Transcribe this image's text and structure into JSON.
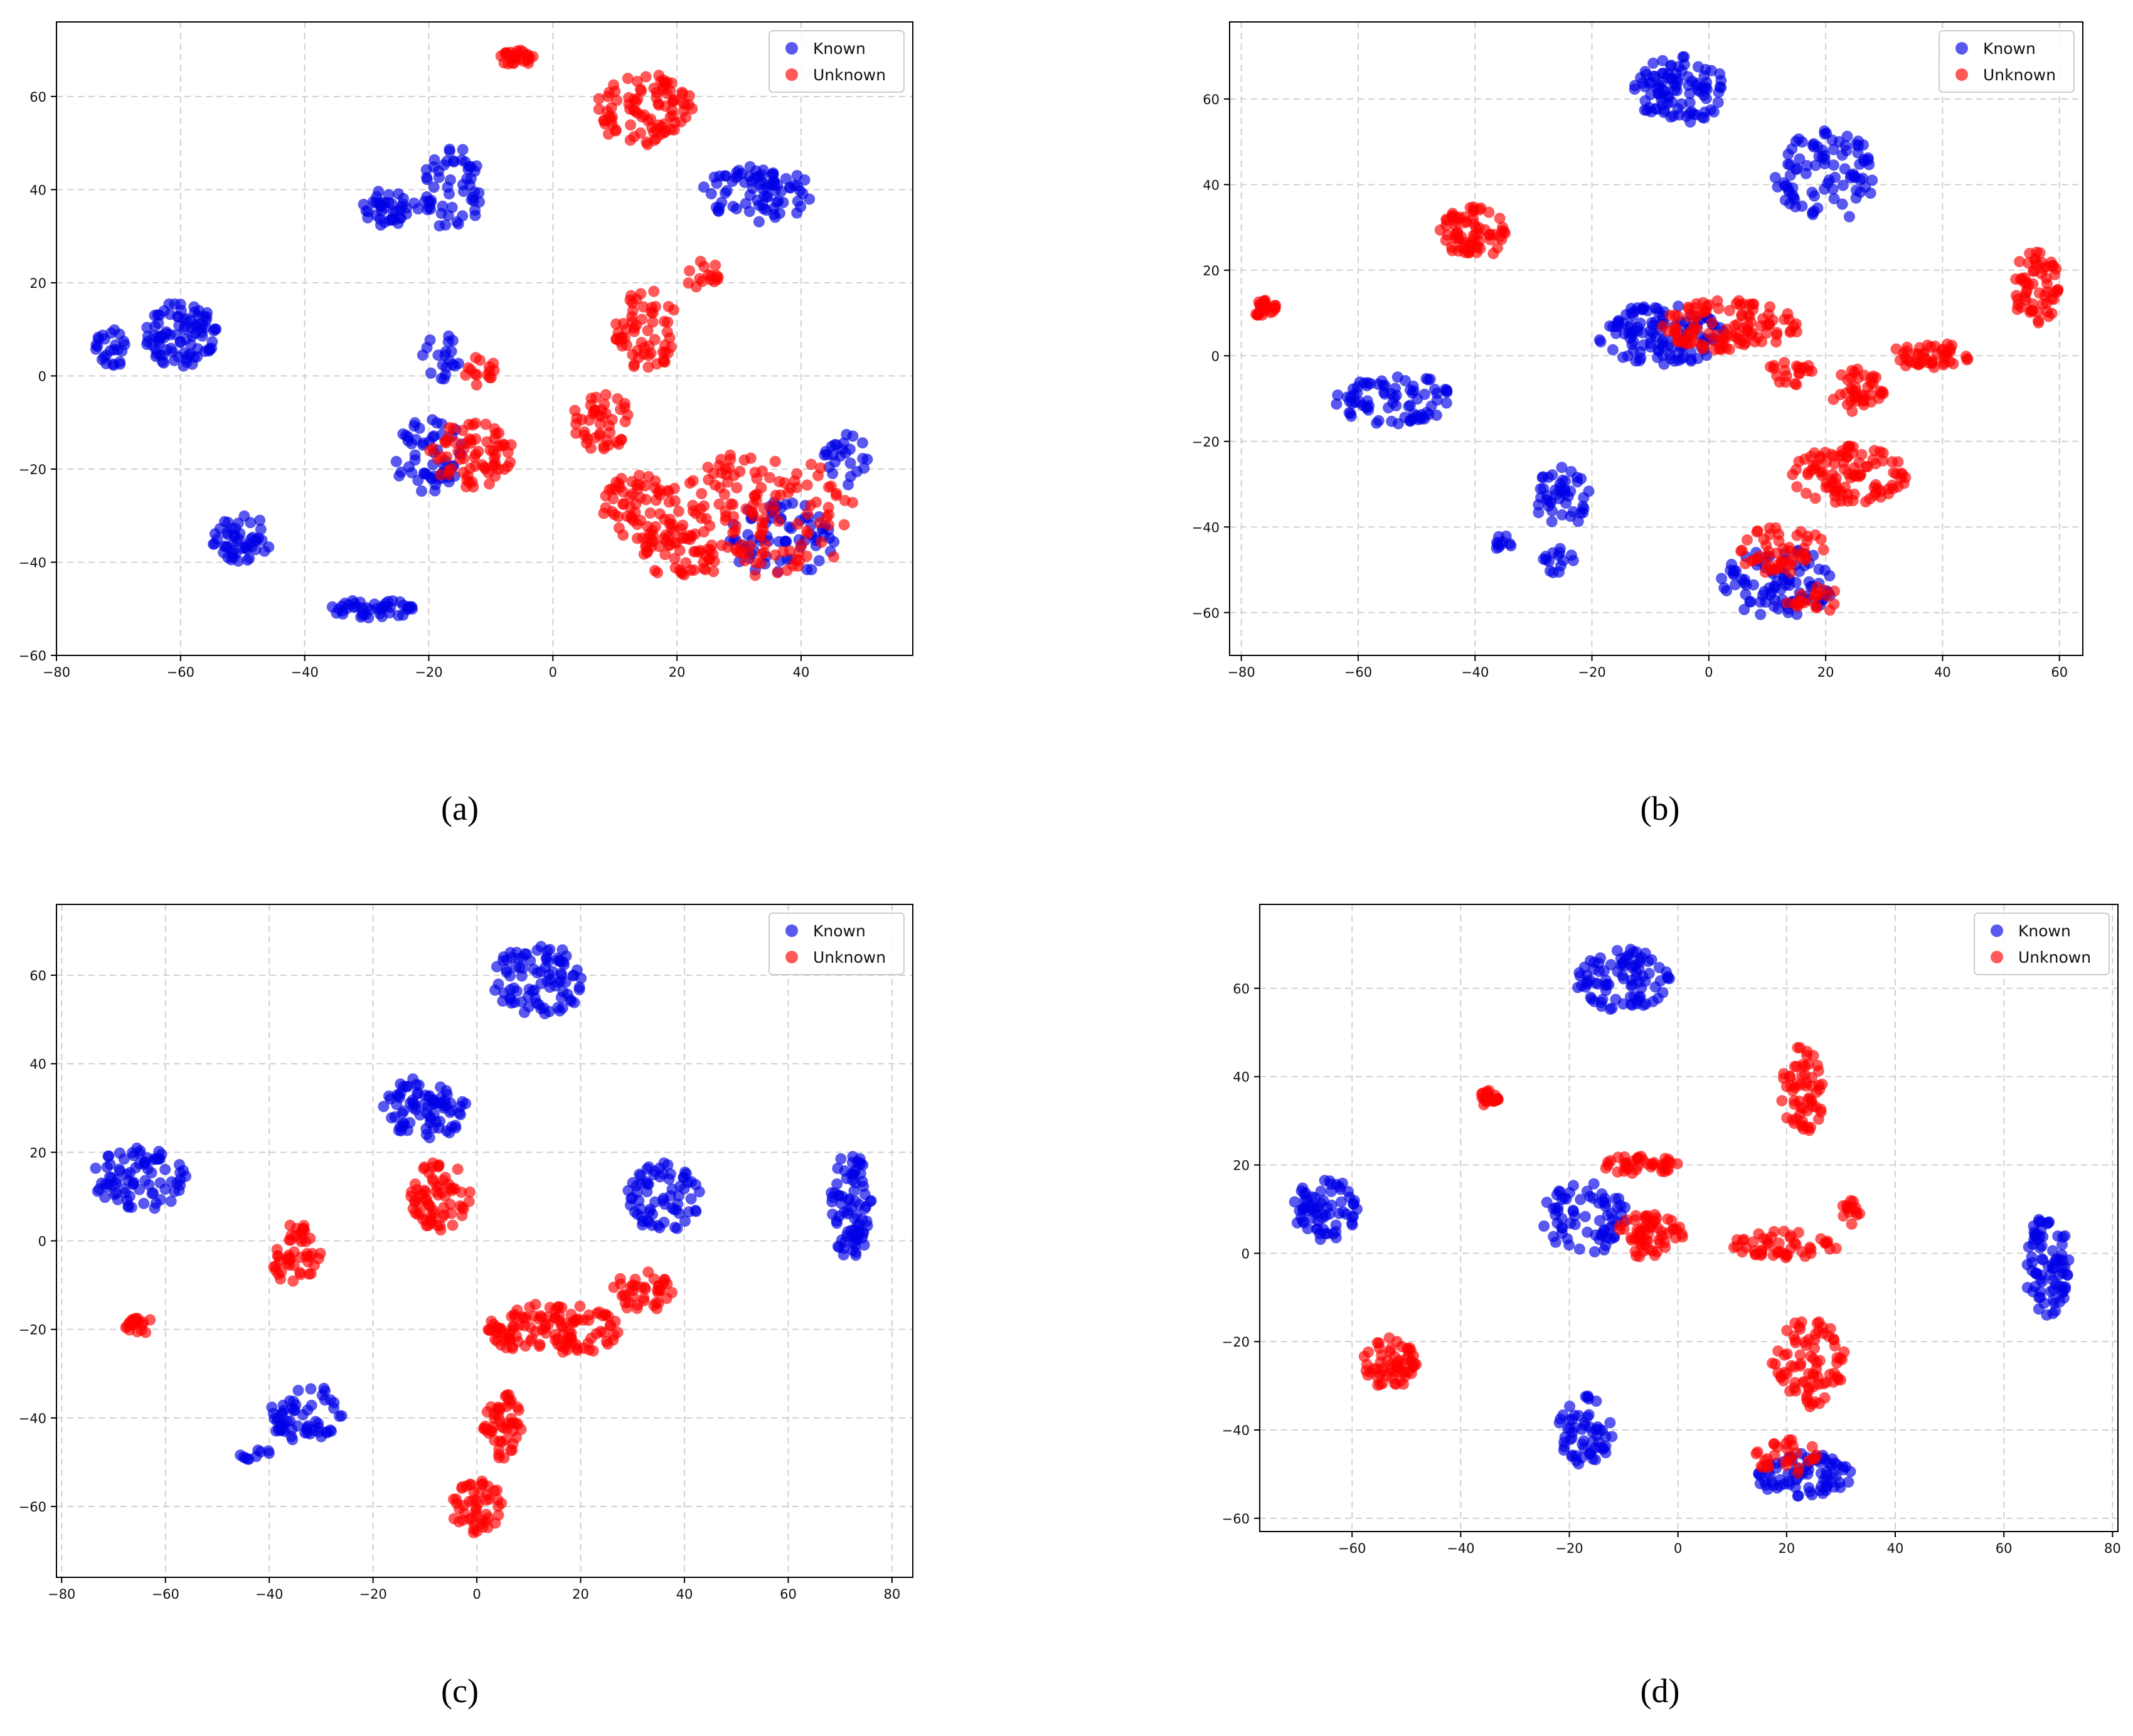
{
  "legend": {
    "known": "Known",
    "unknown": "Unknown"
  },
  "colors": {
    "known": "#0000e6",
    "unknown": "#ff0000",
    "grid": "#d0d0d0"
  },
  "chart_data": [
    {
      "type": "scatter",
      "caption": "(a)",
      "xlim": [
        -80,
        58
      ],
      "ylim": [
        -60,
        76
      ],
      "xticks": [
        -80,
        -60,
        -40,
        -20,
        0,
        20,
        40
      ],
      "yticks": [
        -60,
        -40,
        -20,
        0,
        20,
        40,
        60
      ],
      "grid": true,
      "legend_position": "top-right",
      "series": [
        {
          "name": "Known",
          "clusters": [
            {
              "cx": -60,
              "cy": 9,
              "rx": 6,
              "ry": 7,
              "n": 90
            },
            {
              "cx": -71,
              "cy": 6,
              "rx": 3,
              "ry": 4,
              "n": 25
            },
            {
              "cx": -50,
              "cy": -35,
              "rx": 5,
              "ry": 5,
              "n": 50
            },
            {
              "cx": -29,
              "cy": -50,
              "rx": 7,
              "ry": 2,
              "n": 45
            },
            {
              "cx": -26,
              "cy": 36,
              "rx": 5,
              "ry": 4,
              "n": 40
            },
            {
              "cx": -16,
              "cy": 40,
              "rx": 5,
              "ry": 9,
              "n": 55
            },
            {
              "cx": -20,
              "cy": -17,
              "rx": 6,
              "ry": 8,
              "n": 55
            },
            {
              "cx": -18,
              "cy": 4,
              "rx": 3,
              "ry": 5,
              "n": 20
            },
            {
              "cx": 33,
              "cy": 39,
              "rx": 9,
              "ry": 6,
              "n": 80
            },
            {
              "cx": 37,
              "cy": -35,
              "rx": 9,
              "ry": 8,
              "n": 70
            },
            {
              "cx": 47,
              "cy": -18,
              "rx": 4,
              "ry": 6,
              "n": 25
            }
          ]
        },
        {
          "name": "Unknown",
          "clusters": [
            {
              "cx": -6,
              "cy": 68,
              "rx": 3,
              "ry": 2,
              "n": 25
            },
            {
              "cx": 15,
              "cy": 57,
              "rx": 8,
              "ry": 8,
              "n": 90
            },
            {
              "cx": -13,
              "cy": -17,
              "rx": 7,
              "ry": 7,
              "n": 70
            },
            {
              "cx": -12,
              "cy": 1,
              "rx": 3,
              "ry": 3,
              "n": 15
            },
            {
              "cx": 15,
              "cy": 10,
              "rx": 5,
              "ry": 10,
              "n": 60
            },
            {
              "cx": 24,
              "cy": 22,
              "rx": 3,
              "ry": 3,
              "n": 15
            },
            {
              "cx": 8,
              "cy": -10,
              "rx": 5,
              "ry": 6,
              "n": 45
            },
            {
              "cx": 14,
              "cy": -28,
              "rx": 6,
              "ry": 7,
              "n": 55
            },
            {
              "cx": 20,
              "cy": -38,
              "rx": 6,
              "ry": 5,
              "n": 45
            },
            {
              "cx": 33,
              "cy": -30,
              "rx": 16,
              "ry": 14,
              "n": 150
            }
          ]
        }
      ]
    },
    {
      "type": "scatter",
      "caption": "(b)",
      "xlim": [
        -82,
        64
      ],
      "ylim": [
        -70,
        78
      ],
      "xticks": [
        -80,
        -60,
        -40,
        -20,
        0,
        20,
        40,
        60
      ],
      "yticks": [
        -60,
        -40,
        -20,
        0,
        20,
        40,
        60
      ],
      "grid": true,
      "legend_position": "top-right",
      "series": [
        {
          "name": "Known",
          "clusters": [
            {
              "cx": -5,
              "cy": 62,
              "rx": 8,
              "ry": 8,
              "n": 100
            },
            {
              "cx": 20,
              "cy": 42,
              "rx": 9,
              "ry": 11,
              "n": 90
            },
            {
              "cx": -54,
              "cy": -10,
              "rx": 10,
              "ry": 6,
              "n": 80
            },
            {
              "cx": -25,
              "cy": -33,
              "rx": 5,
              "ry": 7,
              "n": 45
            },
            {
              "cx": -35,
              "cy": -44,
              "rx": 2,
              "ry": 2,
              "n": 10
            },
            {
              "cx": -26,
              "cy": -48,
              "rx": 3,
              "ry": 3,
              "n": 15
            },
            {
              "cx": -8,
              "cy": 5,
              "rx": 11,
              "ry": 7,
              "n": 120
            },
            {
              "cx": 12,
              "cy": -53,
              "rx": 10,
              "ry": 8,
              "n": 90
            }
          ]
        },
        {
          "name": "Unknown",
          "clusters": [
            {
              "cx": -76,
              "cy": 11,
              "rx": 2,
              "ry": 2,
              "n": 25
            },
            {
              "cx": -40,
              "cy": 29,
              "rx": 6,
              "ry": 6,
              "n": 70
            },
            {
              "cx": 4,
              "cy": 7,
              "rx": 12,
              "ry": 6,
              "n": 110
            },
            {
              "cx": 14,
              "cy": -4,
              "rx": 4,
              "ry": 3,
              "n": 20
            },
            {
              "cx": 25,
              "cy": -8,
              "rx": 5,
              "ry": 5,
              "n": 40
            },
            {
              "cx": 38,
              "cy": 0,
              "rx": 7,
              "ry": 3,
              "n": 45
            },
            {
              "cx": 56,
              "cy": 16,
              "rx": 4,
              "ry": 9,
              "n": 60
            },
            {
              "cx": 24,
              "cy": -28,
              "rx": 10,
              "ry": 7,
              "n": 100
            },
            {
              "cx": 12,
              "cy": -45,
              "rx": 8,
              "ry": 6,
              "n": 50
            },
            {
              "cx": 18,
              "cy": -57,
              "rx": 5,
              "ry": 3,
              "n": 20
            }
          ]
        }
      ]
    },
    {
      "type": "scatter",
      "caption": "(c)",
      "xlim": [
        -81,
        84
      ],
      "ylim": [
        -76,
        76
      ],
      "xticks": [
        -80,
        -60,
        -40,
        -20,
        0,
        20,
        40,
        60,
        80
      ],
      "yticks": [
        -60,
        -40,
        -20,
        0,
        20,
        40,
        60
      ],
      "grid": true,
      "legend_position": "top-right",
      "series": [
        {
          "name": "Known",
          "clusters": [
            {
              "cx": -65,
              "cy": 14,
              "rx": 9,
              "ry": 7,
              "n": 80
            },
            {
              "cx": -33,
              "cy": -39,
              "rx": 7,
              "ry": 7,
              "n": 60
            },
            {
              "cx": -43,
              "cy": -48,
              "rx": 3,
              "ry": 2,
              "n": 10
            },
            {
              "cx": 12,
              "cy": 59,
              "rx": 9,
              "ry": 8,
              "n": 90
            },
            {
              "cx": -10,
              "cy": 30,
              "rx": 8,
              "ry": 7,
              "n": 80
            },
            {
              "cx": 36,
              "cy": 10,
              "rx": 7,
              "ry": 8,
              "n": 70
            },
            {
              "cx": 72,
              "cy": 8,
              "rx": 4,
              "ry": 12,
              "n": 80
            }
          ]
        },
        {
          "name": "Unknown",
          "clusters": [
            {
              "cx": -35,
              "cy": -3,
              "rx": 5,
              "ry": 7,
              "n": 50
            },
            {
              "cx": -65,
              "cy": -19,
              "rx": 3,
              "ry": 2,
              "n": 20
            },
            {
              "cx": -7,
              "cy": 10,
              "rx": 6,
              "ry": 8,
              "n": 70
            },
            {
              "cx": 15,
              "cy": -20,
              "rx": 13,
              "ry": 6,
              "n": 120
            },
            {
              "cx": 32,
              "cy": -11,
              "rx": 6,
              "ry": 5,
              "n": 40
            },
            {
              "cx": 5,
              "cy": -42,
              "rx": 4,
              "ry": 8,
              "n": 50
            },
            {
              "cx": 0,
              "cy": -60,
              "rx": 5,
              "ry": 6,
              "n": 50
            }
          ]
        }
      ]
    },
    {
      "type": "scatter",
      "caption": "(d)",
      "xlim": [
        -77,
        81
      ],
      "ylim": [
        -63,
        79
      ],
      "xticks": [
        -60,
        -40,
        -20,
        0,
        20,
        40,
        60,
        80
      ],
      "yticks": [
        -60,
        -40,
        -20,
        0,
        20,
        40,
        60
      ],
      "grid": true,
      "legend_position": "top-right",
      "series": [
        {
          "name": "Known",
          "clusters": [
            {
              "cx": -10,
              "cy": 62,
              "rx": 9,
              "ry": 7,
              "n": 90
            },
            {
              "cx": -65,
              "cy": 10,
              "rx": 6,
              "ry": 7,
              "n": 70
            },
            {
              "cx": -17,
              "cy": 8,
              "rx": 8,
              "ry": 8,
              "n": 70
            },
            {
              "cx": -17,
              "cy": -40,
              "rx": 5,
              "ry": 8,
              "n": 60
            },
            {
              "cx": 68,
              "cy": -3,
              "rx": 4,
              "ry": 12,
              "n": 80
            },
            {
              "cx": 23,
              "cy": -50,
              "rx": 9,
              "ry": 5,
              "n": 80
            }
          ]
        },
        {
          "name": "Unknown",
          "clusters": [
            {
              "cx": -35,
              "cy": 35,
              "rx": 2,
              "ry": 2,
              "n": 20
            },
            {
              "cx": -53,
              "cy": -25,
              "rx": 5,
              "ry": 6,
              "n": 60
            },
            {
              "cx": -7,
              "cy": 20,
              "rx": 8,
              "ry": 2,
              "n": 40
            },
            {
              "cx": -5,
              "cy": 4,
              "rx": 7,
              "ry": 5,
              "n": 60
            },
            {
              "cx": 20,
              "cy": 2,
              "rx": 10,
              "ry": 3,
              "n": 50
            },
            {
              "cx": 32,
              "cy": 9,
              "rx": 2,
              "ry": 3,
              "n": 15
            },
            {
              "cx": 23,
              "cy": 37,
              "rx": 4,
              "ry": 10,
              "n": 60
            },
            {
              "cx": 24,
              "cy": -25,
              "rx": 7,
              "ry": 10,
              "n": 80
            },
            {
              "cx": 20,
              "cy": -46,
              "rx": 6,
              "ry": 4,
              "n": 30
            }
          ]
        }
      ]
    }
  ]
}
